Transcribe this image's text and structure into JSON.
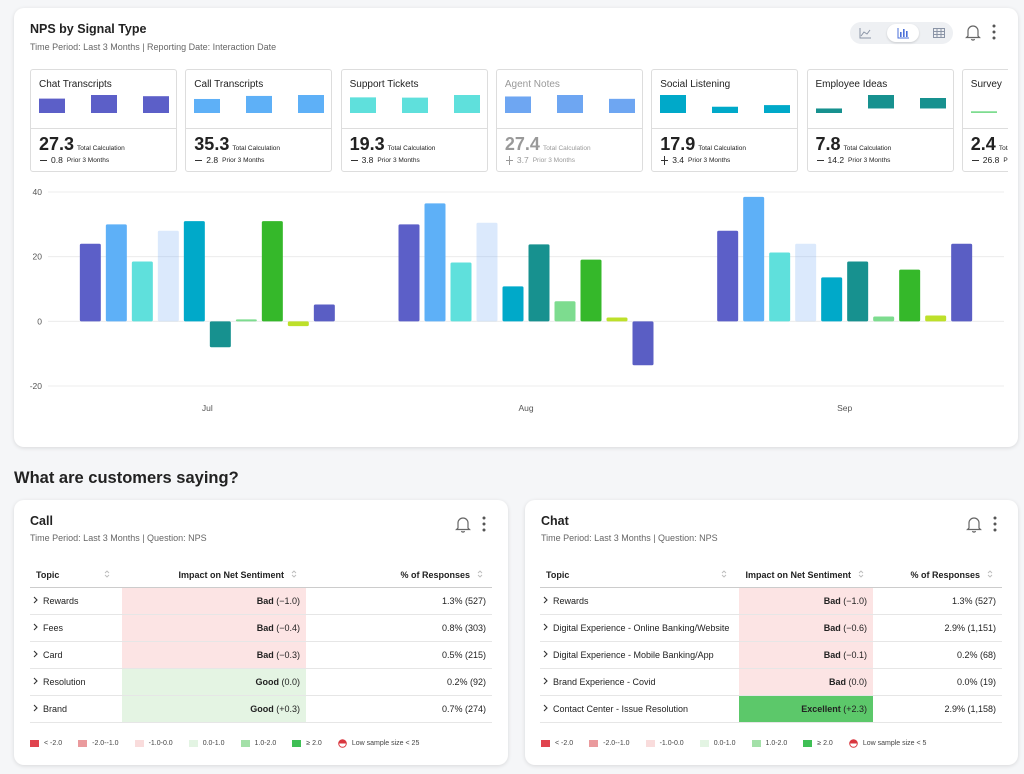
{
  "header": {
    "title": "NPS by Signal Type",
    "subtitle": "Time Period: Last 3 Months | Reporting Date: Interaction Date"
  },
  "kpi_total_label": "Total Calculation",
  "kpi_prior_label": "Prior 3 Months",
  "kpis": [
    {
      "total": 27.3,
      "change": 0.8,
      "trend": "down"
    },
    {
      "total": 35.3,
      "change": 2.8,
      "trend": "down"
    },
    {
      "total": 19.3,
      "change": 3.8,
      "trend": "down"
    },
    {
      "total": 27.4,
      "change": 3.7,
      "trend": "up"
    },
    {
      "total": 17.9,
      "change": 3.4,
      "trend": "up"
    },
    {
      "total": 7.8,
      "change": 14.2,
      "trend": "down"
    },
    {
      "total": 2.4,
      "change": 26.8,
      "trend": "down"
    }
  ],
  "chart_data": {
    "type": "bar",
    "categories": [
      "Jul",
      "Aug",
      "Sep"
    ],
    "ylim": [
      -20,
      40
    ],
    "yticks": [
      -20,
      0,
      20,
      40
    ],
    "grid": true,
    "series": [
      {
        "name": "Chat Transcripts",
        "color": "#5c5fc8",
        "values": [
          24,
          30,
          28
        ]
      },
      {
        "name": "Call Transcripts",
        "color": "#5eb0f7",
        "values": [
          30,
          36.5,
          38.5
        ]
      },
      {
        "name": "Support Tickets",
        "color": "#5fe0dc",
        "values": [
          18.5,
          18.2,
          21.3
        ]
      },
      {
        "name": "Agent Notes",
        "color": "#6ea6f2",
        "dimmed": true,
        "values": [
          28,
          30.5,
          24
        ]
      },
      {
        "name": "Social Listening",
        "color": "#00a9c9",
        "values": [
          31,
          10.8,
          13.6
        ]
      },
      {
        "name": "Employee Ideas",
        "color": "#17918f",
        "values": [
          -8,
          23.8,
          18.5
        ]
      },
      {
        "name": "Survey",
        "color": "#7ddc8f",
        "values": [
          0.6,
          6.2,
          1.5
        ]
      },
      {
        "color": "#35b82a",
        "values": [
          31,
          19.1,
          16
        ]
      },
      {
        "color": "#bde02a",
        "values": [
          -1.5,
          1.2,
          1.8
        ]
      },
      {
        "color": "#5a5ec4",
        "values": [
          5.2,
          -13.6,
          24
        ]
      }
    ]
  },
  "section_title": "What are customers saying?",
  "panels": [
    {
      "title": "Call",
      "subtitle": "Time Period: Last 3 Months | Question: NPS",
      "columns": [
        "Topic",
        "Impact on Net Sentiment",
        "% of Responses"
      ],
      "rows": [
        {
          "topic": "Rewards",
          "rating": "Bad",
          "score": "(−1.0)",
          "responses": "1.3% (527)",
          "color": "#fce4e4"
        },
        {
          "topic": "Fees",
          "rating": "Bad",
          "score": "(−0.4)",
          "responses": "0.8% (303)",
          "color": "#fce4e4"
        },
        {
          "topic": "Card",
          "rating": "Bad",
          "score": "(−0.3)",
          "responses": "0.5% (215)",
          "color": "#fce4e4"
        },
        {
          "topic": "Resolution",
          "rating": "Good",
          "score": "(0.0)",
          "responses": "0.2% (92)",
          "color": "#e4f4e3"
        },
        {
          "topic": "Brand",
          "rating": "Good",
          "score": "(+0.3)",
          "responses": "0.7% (274)",
          "color": "#e4f4e3"
        }
      ],
      "legend": [
        {
          "label": "< -2.0",
          "color": "#e0444e"
        },
        {
          "label": "-2.0--1.0",
          "color": "#ea9a9d"
        },
        {
          "label": "-1.0-0.0",
          "color": "#f9dcdc"
        },
        {
          "label": "0.0-1.0",
          "color": "#e3f4e3"
        },
        {
          "label": "1.0-2.0",
          "color": "#a3e0a8"
        },
        {
          "label": "≥ 2.0",
          "color": "#3fbf55"
        }
      ],
      "low_sample": "Low sample size < 25"
    },
    {
      "title": "Chat",
      "subtitle": "Time Period: Last 3 Months | Question: NPS",
      "columns": [
        "Topic",
        "Impact on Net Sentiment",
        "% of Responses"
      ],
      "rows": [
        {
          "topic": "Rewards",
          "rating": "Bad",
          "score": "(−1.0)",
          "responses": "1.3% (527)",
          "color": "#fce4e4"
        },
        {
          "topic": "Digital Experience - Online Banking/Website",
          "rating": "Bad",
          "score": "(−0.6)",
          "responses": "2.9% (1,151)",
          "color": "#fce4e4"
        },
        {
          "topic": "Digital Experience - Mobile Banking/App",
          "rating": "Bad",
          "score": "(−0.1)",
          "responses": "0.2% (68)",
          "color": "#fce4e4"
        },
        {
          "topic": "Brand Experience - Covid",
          "rating": "Bad",
          "score": "(0.0)",
          "responses": "0.0% (19)",
          "color": "#fce4e4"
        },
        {
          "topic": "Contact Center - Issue Resolution",
          "rating": "Excellent",
          "score": "(+2.3)",
          "responses": "2.9% (1,158)",
          "color": "#5cc86a"
        }
      ],
      "legend": [
        {
          "label": "< -2.0",
          "color": "#e0444e"
        },
        {
          "label": "-2.0--1.0",
          "color": "#ea9a9d"
        },
        {
          "label": "-1.0-0.0",
          "color": "#f9dcdc"
        },
        {
          "label": "0.0-1.0",
          "color": "#e3f4e3"
        },
        {
          "label": "1.0-2.0",
          "color": "#a3e0a8"
        },
        {
          "label": "≥ 2.0",
          "color": "#3fbf55"
        }
      ],
      "low_sample": "Low sample size < 5"
    }
  ]
}
